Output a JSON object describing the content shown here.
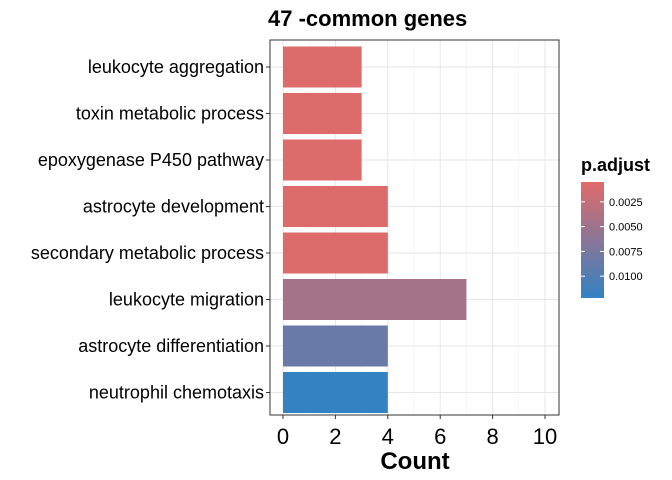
{
  "chart_data": {
    "type": "bar",
    "orientation": "horizontal",
    "title": "47 -common genes",
    "xlabel": "Count",
    "ylabel": "",
    "xlim": [
      0,
      10
    ],
    "xticks": [
      0,
      2,
      4,
      6,
      8,
      10
    ],
    "grid": true,
    "categories": [
      "leukocyte aggregation",
      "toxin metabolic process",
      "epoxygenase P450 pathway",
      "astrocyte development",
      "secondary metabolic process",
      "leukocyte migration",
      "astrocyte differentiation",
      "neutrophil chemotaxis"
    ],
    "values": [
      3,
      3,
      3,
      4,
      4,
      7,
      4,
      4
    ],
    "color_values": [
      0.0008,
      0.0008,
      0.0008,
      0.0008,
      0.0008,
      0.0045,
      0.0085,
      0.012
    ],
    "color_scale": {
      "title": "p.adjust",
      "domain": [
        0.0005,
        0.0122
      ],
      "low_color": "#E26A6A",
      "high_color": "#3282C4",
      "ticks": [
        0.0025,
        0.005,
        0.0075,
        0.01
      ],
      "tick_labels": [
        "0.0025",
        "0.0050",
        "0.0075",
        "0.0100"
      ]
    },
    "legend_position": "right"
  }
}
